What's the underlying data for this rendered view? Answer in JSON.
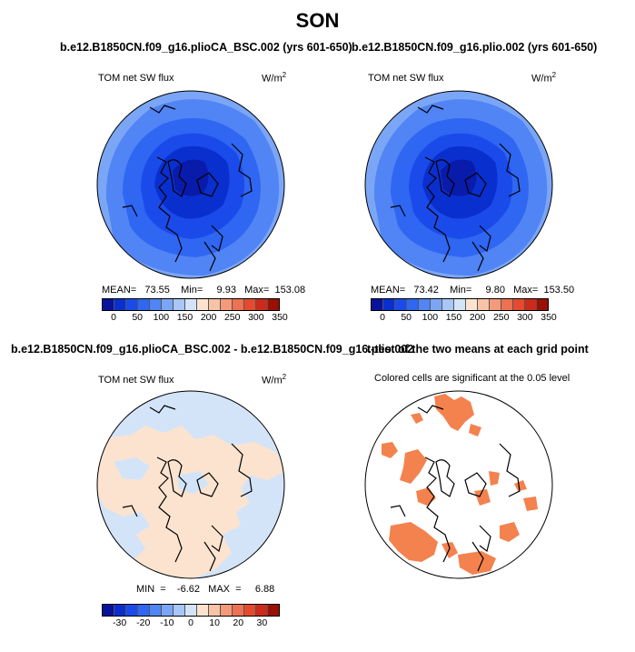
{
  "figure": {
    "title": "SON",
    "colors": {
      "abs_scale": [
        "#08129a",
        "#0a2fcf",
        "#1a4bea",
        "#2f66f2",
        "#5184f4",
        "#7ba6f6",
        "#a8c6f7",
        "#d3e4f9",
        "#fbe3cf",
        "#f9c3a7",
        "#f49a7a",
        "#ee7151",
        "#e64a2e",
        "#cc2a1a",
        "#991104"
      ],
      "diff_scale": [
        "#08129a",
        "#0a2fcf",
        "#1a4bea",
        "#2f66f2",
        "#5184f4",
        "#7ba6f6",
        "#a8c6f7",
        "#d3e4f9",
        "#fbe3cf",
        "#f9c3a7",
        "#f49a7a",
        "#ee7151",
        "#e64a2e",
        "#cc2a1a",
        "#991104"
      ],
      "significant": "#f4824e"
    }
  },
  "panels": [
    {
      "title": "b.e12.B1850CN.f09_g16.plioCA_BSC.002 (yrs 601-650)",
      "left_label": "TOM net SW flux",
      "units": "W/m",
      "units_sup": "2",
      "stats": "MEAN=   73.55    Min=     9.93   Max=  153.08",
      "colorbar_ticks": [
        "0",
        "50",
        "100",
        "150",
        "200",
        "250",
        "300",
        "350"
      ]
    },
    {
      "title": "b.e12.B1850CN.f09_g16.plio.002 (yrs 601-650)",
      "left_label": "TOM net SW flux",
      "units": "W/m",
      "units_sup": "2",
      "stats": "MEAN=   73.42    Min=     9.80   Max=  153.50",
      "colorbar_ticks": [
        "0",
        "50",
        "100",
        "150",
        "200",
        "250",
        "300",
        "350"
      ]
    },
    {
      "title": "b.e12.B1850CN.f09_g16.plioCA_BSC.002 - b.e12.B1850CN.f09_g16.plio.002",
      "left_label": "TOM net SW flux",
      "units": "W/m",
      "units_sup": "2",
      "stats": "MIN  =    -6.62   MAX  =     6.88",
      "colorbar_ticks": [
        "-30",
        "-20",
        "-10",
        "0",
        "10",
        "20",
        "30"
      ]
    },
    {
      "title": "t-test of the two means at each grid point",
      "left_label": "Colored cells are significant at the 0.05 level"
    }
  ]
}
